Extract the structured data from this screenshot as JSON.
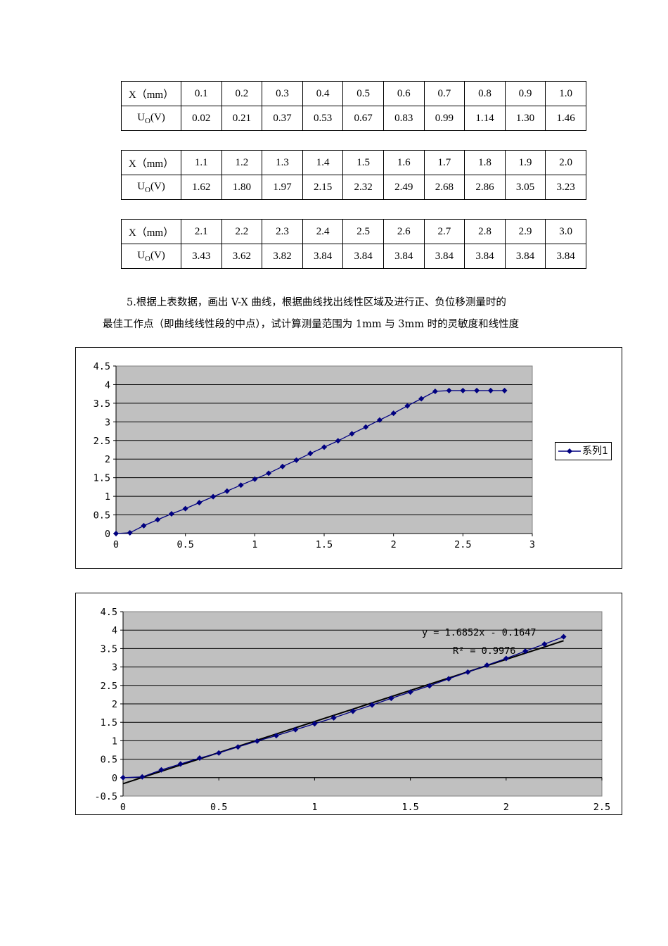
{
  "tables": [
    {
      "row1_label": "X（mm）",
      "row2_label_main": "U",
      "row2_label_sub": "O",
      "row2_label_unit": "(V)",
      "x": [
        "0.1",
        "0.2",
        "0.3",
        "0.4",
        "0.5",
        "0.6",
        "0.7",
        "0.8",
        "0.9",
        "1.0"
      ],
      "u": [
        "0.02",
        "0.21",
        "0.37",
        "0.53",
        "0.67",
        "0.83",
        "0.99",
        "1.14",
        "1.30",
        "1.46"
      ]
    },
    {
      "row1_label": "X（mm）",
      "row2_label_main": "U",
      "row2_label_sub": "O",
      "row2_label_unit": "(V)",
      "x": [
        "1.1",
        "1.2",
        "1.3",
        "1.4",
        "1.5",
        "1.6",
        "1.7",
        "1.8",
        "1.9",
        "2.0"
      ],
      "u": [
        "1.62",
        "1.80",
        "1.97",
        "2.15",
        "2.32",
        "2.49",
        "2.68",
        "2.86",
        "3.05",
        "3.23"
      ]
    },
    {
      "row1_label": "X（mm）",
      "row2_label_main": "U",
      "row2_label_sub": "O",
      "row2_label_unit": "(V)",
      "x": [
        "2.1",
        "2.2",
        "2.3",
        "2.4",
        "2.5",
        "2.6",
        "2.7",
        "2.8",
        "2.9",
        "3.0"
      ],
      "u": [
        "3.43",
        "3.62",
        "3.82",
        "3.84",
        "3.84",
        "3.84",
        "3.84",
        "3.84",
        "3.84",
        "3.84"
      ]
    }
  ],
  "paragraph": {
    "line1": "5.根据上表数据，画出 V-X 曲线，根据曲线找出线性区域及进行正、负位移测量时的",
    "line2": "最佳工作点（即曲线线性段的中点），试计算测量范围为 1mm 与 3mm 时的灵敏度和线性度"
  },
  "chart_data": [
    {
      "type": "line",
      "x": [
        0,
        0.1,
        0.2,
        0.3,
        0.4,
        0.5,
        0.6,
        0.7,
        0.8,
        0.9,
        1.0,
        1.1,
        1.2,
        1.3,
        1.4,
        1.5,
        1.6,
        1.7,
        1.8,
        1.9,
        2.0,
        2.1,
        2.2,
        2.3,
        2.4,
        2.5,
        2.6,
        2.7,
        2.8
      ],
      "series": [
        {
          "name": "系列1",
          "values": [
            0,
            0.02,
            0.21,
            0.37,
            0.53,
            0.67,
            0.83,
            0.99,
            1.14,
            1.3,
            1.46,
            1.62,
            1.8,
            1.97,
            2.15,
            2.32,
            2.49,
            2.68,
            2.86,
            3.05,
            3.23,
            3.43,
            3.62,
            3.82,
            3.84,
            3.84,
            3.84,
            3.84,
            3.84
          ]
        }
      ],
      "xlim": [
        0,
        3
      ],
      "ylim": [
        0,
        4.5
      ],
      "xticks": [
        "0",
        "0.5",
        "1",
        "1.5",
        "2",
        "2.5",
        "3"
      ],
      "yticks": [
        "0",
        "0.5",
        "1",
        "1.5",
        "2",
        "2.5",
        "3",
        "3.5",
        "4",
        "4.5"
      ],
      "grid": true,
      "legend": "right",
      "colors": {
        "series": "#000080",
        "plot_bg": "#c0c0c0"
      }
    },
    {
      "type": "line",
      "x": [
        0,
        0.1,
        0.2,
        0.3,
        0.4,
        0.5,
        0.6,
        0.7,
        0.8,
        0.9,
        1.0,
        1.1,
        1.2,
        1.3,
        1.4,
        1.5,
        1.6,
        1.7,
        1.8,
        1.9,
        2.0,
        2.1,
        2.2,
        2.3
      ],
      "series": [
        {
          "values": [
            0,
            0.02,
            0.21,
            0.37,
            0.53,
            0.67,
            0.83,
            0.99,
            1.14,
            1.3,
            1.46,
            1.62,
            1.8,
            1.97,
            2.15,
            2.32,
            2.49,
            2.68,
            2.86,
            3.05,
            3.23,
            3.43,
            3.62,
            3.82
          ]
        }
      ],
      "trendline": {
        "slope": 1.6852,
        "intercept": -0.1647,
        "x_range": [
          0,
          2.3
        ]
      },
      "annotations": [
        "y = 1.6852x - 0.1647",
        "R² = 0.9976"
      ],
      "xlim": [
        0,
        2.5
      ],
      "ylim": [
        -0.5,
        4.5
      ],
      "xticks": [
        "0",
        "0.5",
        "1",
        "1.5",
        "2",
        "2.5"
      ],
      "yticks": [
        "-0.5",
        "0",
        "0.5",
        "1",
        "1.5",
        "2",
        "2.5",
        "3",
        "3.5",
        "4",
        "4.5"
      ],
      "grid": true,
      "colors": {
        "series": "#000080",
        "trend": "#000000",
        "plot_bg": "#c0c0c0"
      }
    }
  ]
}
